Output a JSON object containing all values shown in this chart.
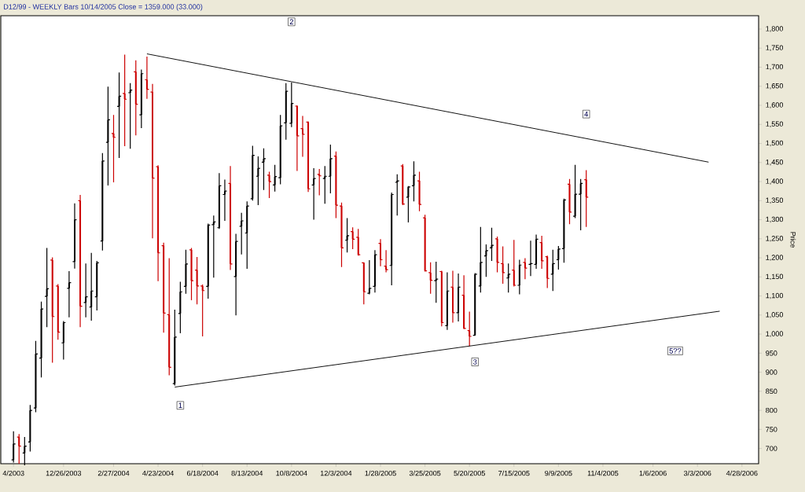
{
  "chart_data": {
    "type": "candlestick",
    "title": "D12/99  - WEEKLY Bars  10/14/2005 Close = 1359.000 (33.000)",
    "ylabel": "Price",
    "x": [
      "2003-10-24",
      "2003-10-31",
      "2003-11-07",
      "2003-11-14",
      "2003-11-21",
      "2003-11-28",
      "2003-12-05",
      "2003-12-12",
      "2003-12-19",
      "2003-12-26",
      "2004-01-02",
      "2004-01-09",
      "2004-01-16",
      "2004-01-23",
      "2004-01-30",
      "2004-02-06",
      "2004-02-13",
      "2004-02-20",
      "2004-02-27",
      "2004-03-05",
      "2004-03-12",
      "2004-03-19",
      "2004-03-26",
      "2004-04-02",
      "2004-04-09",
      "2004-04-16",
      "2004-04-23",
      "2004-04-30",
      "2004-05-07",
      "2004-05-14",
      "2004-05-21",
      "2004-05-28",
      "2004-06-04",
      "2004-06-11",
      "2004-06-18",
      "2004-06-25",
      "2004-07-02",
      "2004-07-09",
      "2004-07-16",
      "2004-07-23",
      "2004-07-30",
      "2004-08-06",
      "2004-08-13",
      "2004-08-20",
      "2004-08-27",
      "2004-09-03",
      "2004-09-10",
      "2004-09-17",
      "2004-09-24",
      "2004-10-01",
      "2004-10-08",
      "2004-10-15",
      "2004-10-22",
      "2004-10-29",
      "2004-11-05",
      "2004-11-12",
      "2004-11-19",
      "2004-11-26",
      "2004-12-03",
      "2004-12-10",
      "2004-12-17",
      "2004-12-24",
      "2004-12-31",
      "2005-01-07",
      "2005-01-14",
      "2005-01-21",
      "2005-01-28",
      "2005-02-04",
      "2005-02-11",
      "2005-02-18",
      "2005-02-25",
      "2005-03-04",
      "2005-03-11",
      "2005-03-18",
      "2005-03-25",
      "2005-04-01",
      "2005-04-08",
      "2005-04-15",
      "2005-04-22",
      "2005-04-29",
      "2005-05-06",
      "2005-05-13",
      "2005-05-20",
      "2005-05-27",
      "2005-06-03",
      "2005-06-10",
      "2005-06-17",
      "2005-06-24",
      "2005-07-01",
      "2005-07-08",
      "2005-07-15",
      "2005-07-22",
      "2005-07-29",
      "2005-08-05",
      "2005-08-12",
      "2005-08-19",
      "2005-08-26",
      "2005-09-02",
      "2005-09-09",
      "2005-09-16",
      "2005-09-23",
      "2005-09-30",
      "2005-10-07",
      "2005-10-14"
    ],
    "ohlc": [
      [
        670,
        745,
        663,
        712
      ],
      [
        730,
        738,
        660,
        706
      ],
      [
        688,
        730,
        656,
        706
      ],
      [
        717,
        814,
        692,
        800
      ],
      [
        806,
        982,
        795,
        948
      ],
      [
        937,
        1085,
        886,
        1066
      ],
      [
        1099,
        1226,
        1018,
        1119
      ],
      [
        1194,
        1201,
        925,
        1046
      ],
      [
        1126,
        1131,
        985,
        1005
      ],
      [
        977,
        1034,
        933,
        1030
      ],
      [
        1120,
        1165,
        1044,
        1135
      ],
      [
        1190,
        1343,
        1172,
        1300
      ],
      [
        1350,
        1365,
        1018,
        1073
      ],
      [
        1083,
        1185,
        1044,
        1098
      ],
      [
        1071,
        1213,
        1035,
        1113
      ],
      [
        1098,
        1192,
        1062,
        1187
      ],
      [
        1244,
        1475,
        1219,
        1454
      ],
      [
        1503,
        1649,
        1390,
        1562
      ],
      [
        1526,
        1575,
        1398,
        1516
      ],
      [
        1597,
        1686,
        1462,
        1624
      ],
      [
        1631,
        1733,
        1493,
        1616
      ],
      [
        1633,
        1658,
        1486,
        1640
      ],
      [
        1688,
        1718,
        1521,
        1603
      ],
      [
        1575,
        1694,
        1540,
        1683
      ],
      [
        1667,
        1728,
        1617,
        1642
      ],
      [
        1635,
        1656,
        1251,
        1409
      ],
      [
        1439,
        1443,
        1139,
        1213
      ],
      [
        1232,
        1240,
        1004,
        1055
      ],
      [
        1051,
        1199,
        892,
        913
      ],
      [
        870,
        1064,
        865,
        992
      ],
      [
        1054,
        1137,
        1002,
        1111
      ],
      [
        1125,
        1221,
        1106,
        1184
      ],
      [
        1221,
        1226,
        1089,
        1140
      ],
      [
        1168,
        1202,
        1078,
        1126
      ],
      [
        1126,
        1130,
        994,
        1114
      ],
      [
        1125,
        1290,
        1093,
        1286
      ],
      [
        1287,
        1311,
        1148,
        1294
      ],
      [
        1279,
        1422,
        1276,
        1389
      ],
      [
        1366,
        1405,
        1297,
        1375
      ],
      [
        1395,
        1441,
        1168,
        1184
      ],
      [
        1151,
        1263,
        1049,
        1243
      ],
      [
        1283,
        1318,
        1209,
        1297
      ],
      [
        1265,
        1348,
        1171,
        1336
      ],
      [
        1355,
        1494,
        1350,
        1469
      ],
      [
        1414,
        1466,
        1338,
        1435
      ],
      [
        1451,
        1487,
        1378,
        1460
      ],
      [
        1417,
        1426,
        1357,
        1400
      ],
      [
        1391,
        1444,
        1374,
        1413
      ],
      [
        1410,
        1575,
        1393,
        1546
      ],
      [
        1554,
        1658,
        1510,
        1637
      ],
      [
        1553,
        1660,
        1543,
        1605
      ],
      [
        1598,
        1600,
        1428,
        1520
      ],
      [
        1539,
        1572,
        1465,
        1524
      ],
      [
        1556,
        1558,
        1373,
        1381
      ],
      [
        1391,
        1435,
        1300,
        1408
      ],
      [
        1419,
        1433,
        1364,
        1415
      ],
      [
        1408,
        1441,
        1342,
        1414
      ],
      [
        1414,
        1497,
        1369,
        1460
      ],
      [
        1467,
        1479,
        1304,
        1338
      ],
      [
        1336,
        1345,
        1176,
        1226
      ],
      [
        1246,
        1304,
        1214,
        1258
      ],
      [
        1269,
        1280,
        1223,
        1249
      ],
      [
        1254,
        1276,
        1206,
        1208
      ],
      [
        1187,
        1188,
        1078,
        1111
      ],
      [
        1107,
        1194,
        1104,
        1120
      ],
      [
        1125,
        1220,
        1109,
        1208
      ],
      [
        1238,
        1249,
        1178,
        1195
      ],
      [
        1178,
        1220,
        1162,
        1169
      ],
      [
        1180,
        1371,
        1128,
        1366
      ],
      [
        1398,
        1419,
        1311,
        1402
      ],
      [
        1441,
        1446,
        1338,
        1341
      ],
      [
        1359,
        1388,
        1293,
        1386
      ],
      [
        1389,
        1453,
        1348,
        1417
      ],
      [
        1402,
        1426,
        1322,
        1340
      ],
      [
        1305,
        1313,
        1164,
        1166
      ],
      [
        1161,
        1188,
        1106,
        1141
      ],
      [
        1140,
        1190,
        1082,
        1144
      ],
      [
        1164,
        1166,
        1020,
        1030
      ],
      [
        1022,
        1162,
        1011,
        1113
      ],
      [
        1123,
        1166,
        1030,
        1056
      ],
      [
        1056,
        1159,
        1033,
        1123
      ],
      [
        1102,
        1154,
        1013,
        1015
      ],
      [
        1009,
        1059,
        968,
        994
      ],
      [
        997,
        1160,
        996,
        1157
      ],
      [
        1126,
        1281,
        1109,
        1188
      ],
      [
        1205,
        1235,
        1150,
        1219
      ],
      [
        1226,
        1279,
        1192,
        1233
      ],
      [
        1250,
        1256,
        1162,
        1188
      ],
      [
        1185,
        1230,
        1132,
        1161
      ],
      [
        1147,
        1185,
        1109,
        1157
      ],
      [
        1168,
        1247,
        1125,
        1128
      ],
      [
        1128,
        1195,
        1104,
        1181
      ],
      [
        1188,
        1199,
        1144,
        1173
      ],
      [
        1183,
        1245,
        1152,
        1185
      ],
      [
        1183,
        1261,
        1171,
        1249
      ],
      [
        1240,
        1258,
        1171,
        1192
      ],
      [
        1203,
        1206,
        1121,
        1146
      ],
      [
        1157,
        1221,
        1113,
        1185
      ],
      [
        1195,
        1231,
        1169,
        1223
      ],
      [
        1224,
        1355,
        1187,
        1352
      ],
      [
        1393,
        1407,
        1288,
        1320
      ],
      [
        1309,
        1444,
        1304,
        1367
      ],
      [
        1367,
        1407,
        1272,
        1395
      ],
      [
        1405,
        1430,
        1281,
        1359
      ]
    ],
    "colors": [
      "#000000",
      "#cc0000",
      "#000000",
      "#000000",
      "#000000",
      "#000000",
      "#000000",
      "#cc0000",
      "#cc0000",
      "#000000",
      "#000000",
      "#000000",
      "#cc0000",
      "#000000",
      "#000000",
      "#000000",
      "#000000",
      "#000000",
      "#cc0000",
      "#000000",
      "#cc0000",
      "#000000",
      "#cc0000",
      "#000000",
      "#cc0000",
      "#cc0000",
      "#cc0000",
      "#cc0000",
      "#cc0000",
      "#000000",
      "#000000",
      "#000000",
      "#cc0000",
      "#cc0000",
      "#cc0000",
      "#000000",
      "#000000",
      "#000000",
      "#000000",
      "#cc0000",
      "#000000",
      "#000000",
      "#000000",
      "#000000",
      "#000000",
      "#000000",
      "#cc0000",
      "#000000",
      "#000000",
      "#000000",
      "#000000",
      "#cc0000",
      "#cc0000",
      "#cc0000",
      "#000000",
      "#cc0000",
      "#000000",
      "#000000",
      "#cc0000",
      "#cc0000",
      "#000000",
      "#cc0000",
      "#cc0000",
      "#cc0000",
      "#000000",
      "#000000",
      "#cc0000",
      "#cc0000",
      "#000000",
      "#000000",
      "#cc0000",
      "#000000",
      "#000000",
      "#cc0000",
      "#cc0000",
      "#cc0000",
      "#000000",
      "#cc0000",
      "#000000",
      "#cc0000",
      "#000000",
      "#cc0000",
      "#cc0000",
      "#000000",
      "#000000",
      "#000000",
      "#000000",
      "#cc0000",
      "#cc0000",
      "#000000",
      "#cc0000",
      "#000000",
      "#cc0000",
      "#000000",
      "#000000",
      "#cc0000",
      "#cc0000",
      "#000000",
      "#000000",
      "#000000",
      "#cc0000",
      "#000000",
      "#000000",
      "#cc0000"
    ],
    "series": [
      {
        "type": "line",
        "color": "#000000",
        "x": [
          "2004-04-09",
          "2006-03-17"
        ],
        "values": [
          1735,
          1451
        ]
      },
      {
        "type": "line",
        "color": "#000000",
        "x": [
          "2004-05-14",
          "2006-03-31"
        ],
        "values": [
          861,
          1060
        ]
      }
    ],
    "annotations": [
      {
        "text": "1",
        "x": "2004-05-21",
        "y": 813
      },
      {
        "text": "2",
        "x": "2004-10-08",
        "y": 1819
      },
      {
        "text": "3",
        "x": "2005-05-27",
        "y": 927
      },
      {
        "text": "4",
        "x": "2005-10-14",
        "y": 1577
      },
      {
        "text": "5??",
        "x": "2006-02-03",
        "y": 956
      }
    ],
    "xlim": [
      "2003-10-08",
      "2006-05-19"
    ],
    "ylim": [
      660,
      1835
    ],
    "xticks": [
      {
        "value": "2003-10-24",
        "label": "4/2003"
      },
      {
        "value": "2003-12-26",
        "label": "12/26/2003"
      },
      {
        "value": "2004-02-27",
        "label": "2/27/2004"
      },
      {
        "value": "2004-04-23",
        "label": "4/23/2004"
      },
      {
        "value": "2004-06-18",
        "label": "6/18/2004"
      },
      {
        "value": "2004-08-13",
        "label": "8/13/2004"
      },
      {
        "value": "2004-10-08",
        "label": "10/8/2004"
      },
      {
        "value": "2004-12-03",
        "label": "12/3/2004"
      },
      {
        "value": "2005-01-28",
        "label": "1/28/2005"
      },
      {
        "value": "2005-03-25",
        "label": "3/25/2005"
      },
      {
        "value": "2005-05-20",
        "label": "5/20/2005"
      },
      {
        "value": "2005-07-15",
        "label": "7/15/2005"
      },
      {
        "value": "2005-09-09",
        "label": "9/9/2005"
      },
      {
        "value": "2005-11-04",
        "label": "11/4/2005"
      },
      {
        "value": "2006-01-06",
        "label": "1/6/2006"
      },
      {
        "value": "2006-03-03",
        "label": "3/3/2006"
      },
      {
        "value": "2006-04-28",
        "label": "4/28/2006"
      }
    ],
    "yticks": [
      700,
      750,
      800,
      850,
      900,
      950,
      {
        "value": 1000,
        "label": "1,000"
      },
      {
        "value": 1050,
        "label": "1,050"
      },
      {
        "value": 1100,
        "label": "1,100"
      },
      {
        "value": 1150,
        "label": "1,150"
      },
      {
        "value": 1200,
        "label": "1,200"
      },
      {
        "value": 1250,
        "label": "1,250"
      },
      {
        "value": 1300,
        "label": "1,300"
      },
      {
        "value": 1350,
        "label": "1,350"
      },
      {
        "value": 1400,
        "label": "1,400"
      },
      {
        "value": 1450,
        "label": "1,450"
      },
      {
        "value": 1500,
        "label": "1,500"
      },
      {
        "value": 1550,
        "label": "1,550"
      },
      {
        "value": 1600,
        "label": "1,600"
      },
      {
        "value": 1650,
        "label": "1,650"
      },
      {
        "value": 1700,
        "label": "1,700"
      },
      {
        "value": 1750,
        "label": "1,750"
      },
      {
        "value": 1800,
        "label": "1,800"
      }
    ],
    "grid": false
  }
}
